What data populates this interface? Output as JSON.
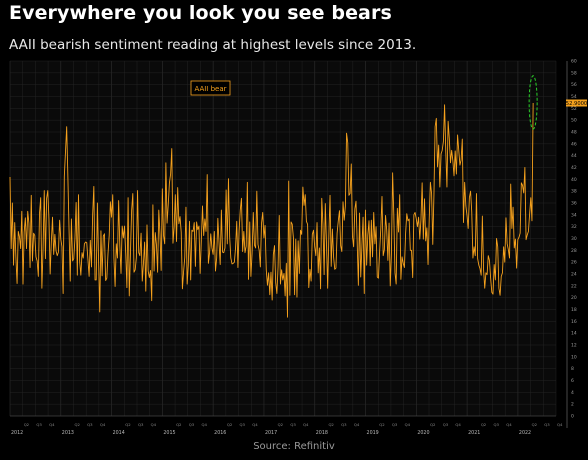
{
  "title": "Everywhere you look you see bears",
  "subtitle": "AAII bearish sentiment reading at highest levels since 2013.",
  "source": "Source: Refinitiv",
  "colors": {
    "background": "#000000",
    "plot_background": "#0a0a0a",
    "grid": "#2a2a2a",
    "series": "#f5a11d",
    "highlight_ellipse": "#2bd12b",
    "last_value_tag": "#f5a11d"
  },
  "chart_data": {
    "type": "line",
    "title": "",
    "xlabel": "",
    "ylabel": "",
    "legend": {
      "label": "AAII bear",
      "placement": "top-left"
    },
    "series": [
      {
        "name": "AAII bear",
        "x_start": 2012.0,
        "x_end": 2022.3,
        "values": [
          40.4,
          28.3,
          36.0,
          25.5,
          32.7,
          26.7,
          22.4,
          31.2,
          30.3,
          28.3,
          34.6,
          22.3,
          31.1,
          33.5,
          28.3,
          34.6,
          32.6,
          25.1,
          37.3,
          26.2,
          30.9,
          30.5,
          26.9,
          26.2,
          23.6,
          34.3,
          36.9,
          21.6,
          28.3,
          38.1,
          26.6,
          36.8,
          38.1,
          33.2,
          24.0,
          29.4,
          33.6,
          27.3,
          30.7,
          27.9,
          27.1,
          27.7,
          33.1,
          29.9,
          28.6,
          20.7,
          40.5,
          44.7,
          48.9,
          40.5,
          31.4,
          22.8,
          33.3,
          26.2,
          26.6,
          30.0,
          36.1,
          23.8,
          37.4,
          26.1,
          23.8,
          27.6,
          26.7,
          29.1,
          29.4,
          29.3,
          26.4,
          23.6,
          29.7,
          25.2,
          34.1,
          38.8,
          23.0,
          23.0,
          36.0,
          26.2,
          17.6,
          31.3,
          23.7,
          30.4,
          30.8,
          22.9,
          23.3,
          27.5,
          30.5,
          36.2,
          33.6,
          37.4,
          26.7,
          21.9,
          29.1,
          26.7,
          36.4,
          28.8,
          24.1,
          32.1,
          30.1,
          32.1,
          27.4,
          21.7,
          36.9,
          20.3,
          27.5,
          34.8,
          37.6,
          24.3,
          24.7,
          26.8,
          38.1,
          27.6,
          27.1,
          30.9,
          22.8,
          25.8,
          29.4,
          21.1,
          32.3,
          24.5,
          23.4,
          24.6,
          19.5,
          35.7,
          24.5,
          31.0,
          29.0,
          24.3,
          34.8,
          30.7,
          24.6,
          38.4,
          30.5,
          29.1,
          42.8,
          32.6,
          35.7,
          39.4,
          40.9,
          45.2,
          29.2,
          32.0,
          37.4,
          29.5,
          38.6,
          32.5,
          33.7,
          31.0,
          21.5,
          24.4,
          26.8,
          35.3,
          22.3,
          25.5,
          32.9,
          23.0,
          31.4,
          31.2,
          32.7,
          25.3,
          32.8,
          31.5,
          32.1,
          24.1,
          29.6,
          35.5,
          30.5,
          33.3,
          31.2,
          40.8,
          25.8,
          27.6,
          30.8,
          28.4,
          27.3,
          31.2,
          24.5,
          26.7,
          33.4,
          29.3,
          25.6,
          34.8,
          27.7,
          27.6,
          28.4,
          38.2,
          29.1,
          40.1,
          30.3,
          26.7,
          25.7,
          25.8,
          26.0,
          28.4,
          32.9,
          25.1,
          31.3,
          34.8,
          36.8,
          27.8,
          31.2,
          27.6,
          28.7,
          39.5,
          23.1,
          32.8,
          23.6,
          27.5,
          34.4,
          28.9,
          28.4,
          38.0,
          29.0,
          28.0,
          25.2,
          32.6,
          34.4,
          30.1,
          32.2,
          24.7,
          22.1,
          24.2,
          20.5,
          24.3,
          19.6,
          27.3,
          28.8,
          22.5,
          20.7,
          25.2,
          33.9,
          22.3,
          24.7,
          23.0,
          24.1,
          20.3,
          25.8,
          16.7,
          39.7,
          20.4,
          32.8,
          32.4,
          30.1,
          20.5,
          29.9,
          20.1,
          29.6,
          24.1,
          31.4,
          30.7,
          38.7,
          35.6,
          37.4,
          32.9,
          32.4,
          21.7,
          24.8,
          22.8,
          30.7,
          31.4,
          28.6,
          27.1,
          32.7,
          24.2,
          28.4,
          21.5,
          36.8,
          32.4,
          23.9,
          35.9,
          29.2,
          21.6,
          30.4,
          37.3,
          25.3,
          31.6,
          26.9,
          24.8,
          25.0,
          30.9,
          33.0,
          34.7,
          28.8,
          27.8,
          36.2,
          33.1,
          35.5,
          47.8,
          46.2,
          37.3,
          37.6,
          42.6,
          30.3,
          28.6,
          35.0,
          36.3,
          29.3,
          22.1,
          34.3,
          23.5,
          28.7,
          33.6,
          20.7,
          34.8,
          25.5,
          30.6,
          33.0,
          25.4,
          33.1,
          26.9,
          34.4,
          29.1,
          32.0,
          23.5,
          23.3,
          27.8,
          31.7,
          37.1,
          27.1,
          28.1,
          33.9,
          31.4,
          26.3,
          32.6,
          22.0,
          27.4,
          41.1,
          34.0,
          24.2,
          22.3,
          35.1,
          31.1,
          37.4,
          23.1,
          26.9,
          25.8,
          25.1,
          30.9,
          34.2,
          33.0,
          33.3,
          28.0,
          28.0,
          23.4,
          34.0,
          34.4,
          33.4,
          32.0,
          33.6,
          29.9,
          33.2,
          39.4,
          29.9,
          36.7,
          29.6,
          31.8,
          25.6,
          33.2,
          39.5,
          37.6,
          29.0,
          37.5,
          48.9,
          50.3,
          42.1,
          45.8,
          38.7,
          44.3,
          44.9,
          46.4,
          52.6,
          44.8,
          38.7,
          49.8,
          46.9,
          42.8,
          44.9,
          43.2,
          40.6,
          44.8,
          40.9,
          47.5,
          44.9,
          42.4,
          43.3,
          46.8,
          32.7,
          39.5,
          35.5,
          33.9,
          31.7,
          36.9,
          38.0,
          34.5,
          26.7,
          28.6,
          27.1,
          37.6,
          26.6,
          25.5,
          24.9,
          23.8,
          33.8,
          24.8,
          21.6,
          24.2,
          23.9,
          27.1,
          26.3,
          23.3,
          20.9,
          20.6,
          25.6,
          23.0,
          30.0,
          28.6,
          21.6,
          20.4,
          23.6,
          24.2,
          28.6,
          26.0,
          33.5,
          29.1,
          28.1,
          26.7,
          39.2,
          31.7,
          35.3,
          28.4,
          29.9,
          25.0,
          29.8,
          30.2,
          30.9,
          39.4,
          39.0,
          37.7,
          42.0,
          29.8,
          30.6,
          31.2,
          34.1,
          36.9,
          33.0,
          52.9
        ]
      }
    ],
    "last_value_label": "52.9000",
    "highlight": {
      "shape": "ellipse",
      "around": "latest reading",
      "x": 2022.3,
      "y": [
        48.5,
        57.5
      ]
    },
    "xlim": [
      2012.0,
      2022.75
    ],
    "ylim": [
      0,
      60
    ],
    "yticks": [
      0,
      2,
      4,
      6,
      8,
      10,
      12,
      14,
      16,
      18,
      20,
      22,
      24,
      26,
      28,
      30,
      32,
      34,
      36,
      38,
      40,
      42,
      44,
      46,
      48,
      50,
      52,
      54,
      56,
      58,
      60
    ],
    "y_axis_side": "right",
    "years": [
      "2012",
      "2013",
      "2014",
      "2015",
      "2016",
      "2017",
      "2018",
      "2019",
      "2020",
      "2021",
      "2022"
    ],
    "quarter_labels": [
      "Q2",
      "Q3",
      "Q4"
    ],
    "grid": true
  }
}
